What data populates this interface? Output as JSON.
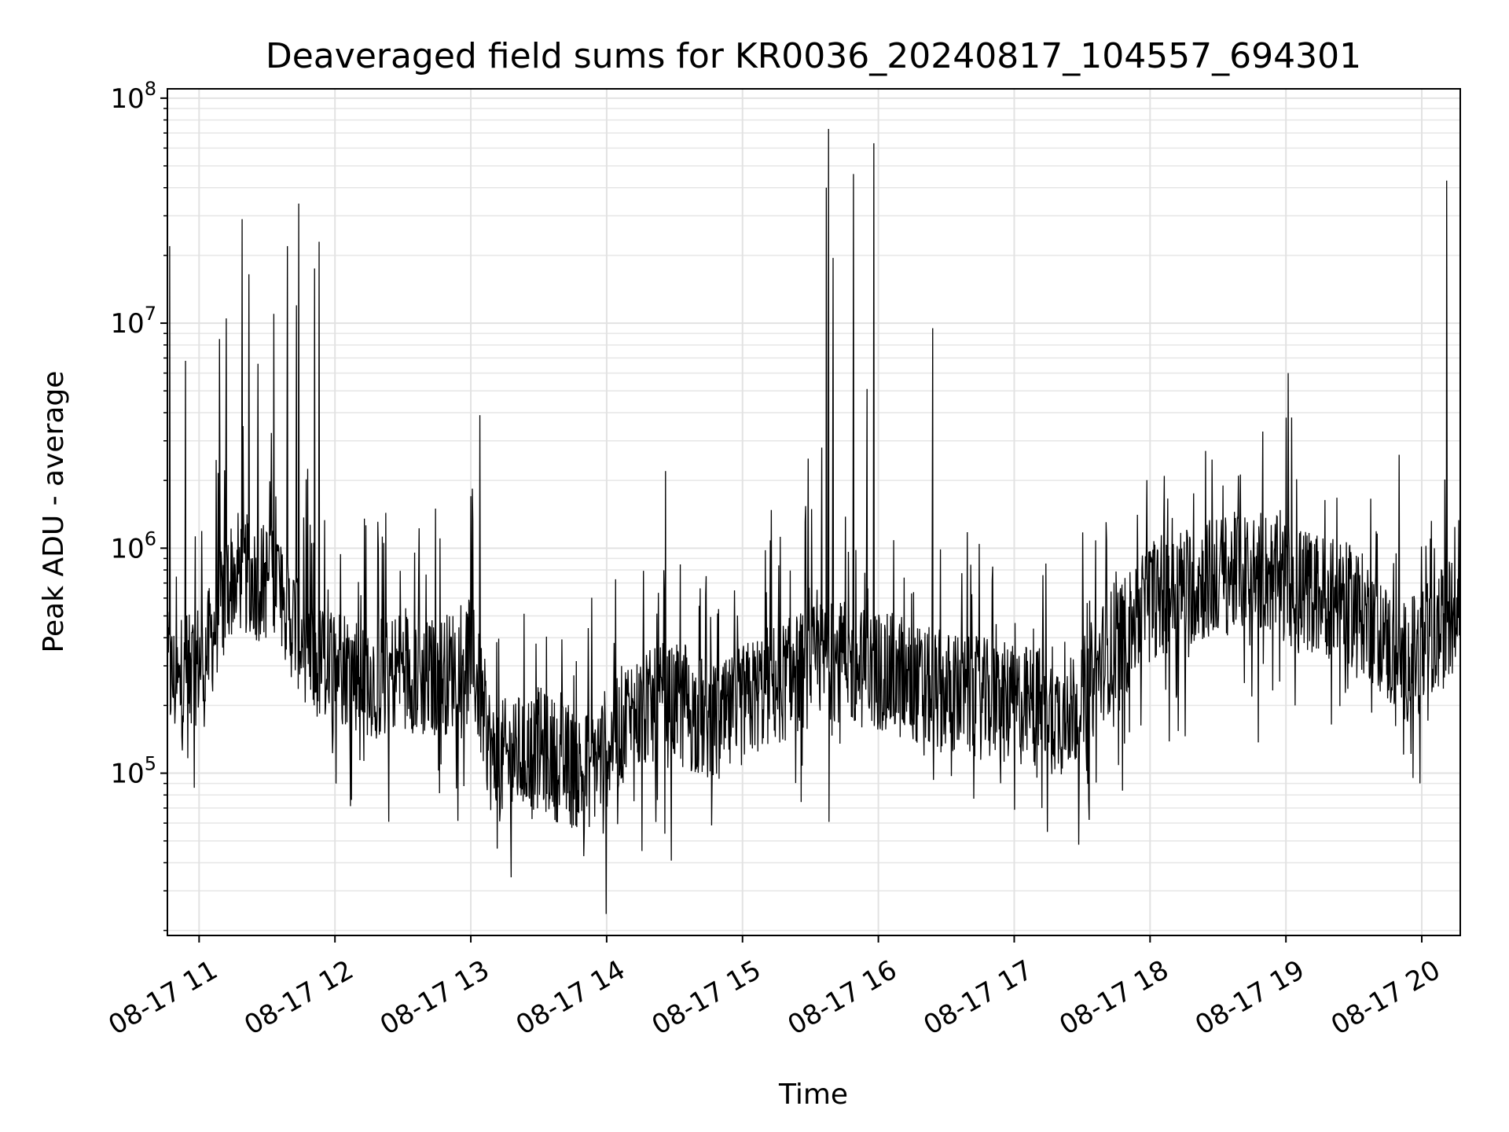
{
  "chart_data": {
    "type": "line",
    "title": "Deaveraged field sums for KR0036_20240817_104557_694301",
    "xlabel": "Time",
    "ylabel": "Peak ADU - average",
    "x_range": [
      "2024-08-17 10:46",
      "2024-08-17 20:17"
    ],
    "ylim": [
      19000,
      110000000
    ],
    "y_scale": "log",
    "grid": true,
    "line_color": "#000000",
    "x_ticks": [
      {
        "time": "2024-08-17 11:00",
        "label": "08-17 11"
      },
      {
        "time": "2024-08-17 12:00",
        "label": "08-17 12"
      },
      {
        "time": "2024-08-17 13:00",
        "label": "08-17 13"
      },
      {
        "time": "2024-08-17 14:00",
        "label": "08-17 14"
      },
      {
        "time": "2024-08-17 15:00",
        "label": "08-17 15"
      },
      {
        "time": "2024-08-17 16:00",
        "label": "08-17 16"
      },
      {
        "time": "2024-08-17 17:00",
        "label": "08-17 17"
      },
      {
        "time": "2024-08-17 18:00",
        "label": "08-17 18"
      },
      {
        "time": "2024-08-17 19:00",
        "label": "08-17 19"
      },
      {
        "time": "2024-08-17 20:00",
        "label": "08-17 20"
      }
    ],
    "y_ticks": [
      {
        "value": 100000,
        "base": "10",
        "exp": "5"
      },
      {
        "value": 1000000,
        "base": "10",
        "exp": "6"
      },
      {
        "value": 10000000,
        "base": "10",
        "exp": "7"
      },
      {
        "value": 100000000,
        "base": "10",
        "exp": "8"
      }
    ],
    "series": [
      {
        "x": [
          "2024-08-17 10:46",
          "2024-08-17 10:52",
          "2024-08-17 10:58",
          "2024-08-17 11:04",
          "2024-08-17 11:10",
          "2024-08-17 11:16",
          "2024-08-17 11:22",
          "2024-08-17 11:28",
          "2024-08-17 11:34",
          "2024-08-17 11:40",
          "2024-08-17 11:46",
          "2024-08-17 11:52",
          "2024-08-17 12:00",
          "2024-08-17 12:10",
          "2024-08-17 12:20",
          "2024-08-17 12:30",
          "2024-08-17 12:40",
          "2024-08-17 12:50",
          "2024-08-17 13:00",
          "2024-08-17 13:10",
          "2024-08-17 13:20",
          "2024-08-17 13:30",
          "2024-08-17 13:40",
          "2024-08-17 13:50",
          "2024-08-17 14:00",
          "2024-08-17 14:10",
          "2024-08-17 14:20",
          "2024-08-17 14:30",
          "2024-08-17 14:40",
          "2024-08-17 14:50",
          "2024-08-17 15:00",
          "2024-08-17 15:10",
          "2024-08-17 15:20",
          "2024-08-17 15:30",
          "2024-08-17 15:40",
          "2024-08-17 15:50",
          "2024-08-17 16:00",
          "2024-08-17 16:10",
          "2024-08-17 16:20",
          "2024-08-17 16:30",
          "2024-08-17 16:40",
          "2024-08-17 16:50",
          "2024-08-17 17:00",
          "2024-08-17 17:10",
          "2024-08-17 17:20",
          "2024-08-17 17:30",
          "2024-08-17 17:40",
          "2024-08-17 17:50",
          "2024-08-17 18:00",
          "2024-08-17 18:10",
          "2024-08-17 18:20",
          "2024-08-17 18:30",
          "2024-08-17 18:40",
          "2024-08-17 18:50",
          "2024-08-17 19:00",
          "2024-08-17 19:10",
          "2024-08-17 19:20",
          "2024-08-17 19:30",
          "2024-08-17 19:40",
          "2024-08-17 19:50",
          "2024-08-17 20:00",
          "2024-08-17 20:10",
          "2024-08-17 20:17"
        ],
        "values": [
          280000,
          230000,
          300000,
          350000,
          600000,
          800000,
          750000,
          700000,
          800000,
          500000,
          400000,
          300000,
          320000,
          280000,
          260000,
          300000,
          260000,
          280000,
          350000,
          110000,
          120000,
          130000,
          110000,
          100000,
          130000,
          180000,
          190000,
          200000,
          180000,
          160000,
          200000,
          240000,
          260000,
          300000,
          320000,
          300000,
          280000,
          260000,
          240000,
          230000,
          220000,
          210000,
          200000,
          200000,
          180000,
          210000,
          330000,
          420000,
          600000,
          650000,
          700000,
          750000,
          780000,
          800000,
          700000,
          650000,
          600000,
          550000,
          450000,
          300000,
          350000,
          450000,
          600000
        ]
      }
    ],
    "spikes": [
      {
        "x": "2024-08-17 10:47",
        "y": 22000000
      },
      {
        "x": "2024-08-17 10:54",
        "y": 6800000
      },
      {
        "x": "2024-08-17 11:09",
        "y": 8500000
      },
      {
        "x": "2024-08-17 11:12",
        "y": 10500000
      },
      {
        "x": "2024-08-17 11:19",
        "y": 29000000
      },
      {
        "x": "2024-08-17 11:22",
        "y": 16500000
      },
      {
        "x": "2024-08-17 11:26",
        "y": 6600000
      },
      {
        "x": "2024-08-17 11:33",
        "y": 11000000
      },
      {
        "x": "2024-08-17 11:39",
        "y": 22000000
      },
      {
        "x": "2024-08-17 11:43",
        "y": 12000000
      },
      {
        "x": "2024-08-17 11:44",
        "y": 34000000
      },
      {
        "x": "2024-08-17 11:51",
        "y": 17500000
      },
      {
        "x": "2024-08-17 11:53",
        "y": 23000000
      },
      {
        "x": "2024-08-17 13:04",
        "y": 3900000
      },
      {
        "x": "2024-08-17 14:26",
        "y": 2200000
      },
      {
        "x": "2024-08-17 15:29",
        "y": 2500000
      },
      {
        "x": "2024-08-17 15:35",
        "y": 2800000
      },
      {
        "x": "2024-08-17 15:37",
        "y": 40000000
      },
      {
        "x": "2024-08-17 15:38",
        "y": 73000000
      },
      {
        "x": "2024-08-17 15:40",
        "y": 19500000
      },
      {
        "x": "2024-08-17 15:49",
        "y": 46000000
      },
      {
        "x": "2024-08-17 15:55",
        "y": 5100000
      },
      {
        "x": "2024-08-17 15:58",
        "y": 63000000
      },
      {
        "x": "2024-08-17 16:24",
        "y": 9500000
      },
      {
        "x": "2024-08-17 19:01",
        "y": 6000000
      },
      {
        "x": "2024-08-17 19:50",
        "y": 2600000
      },
      {
        "x": "2024-08-17 20:11",
        "y": 43000000
      }
    ]
  }
}
